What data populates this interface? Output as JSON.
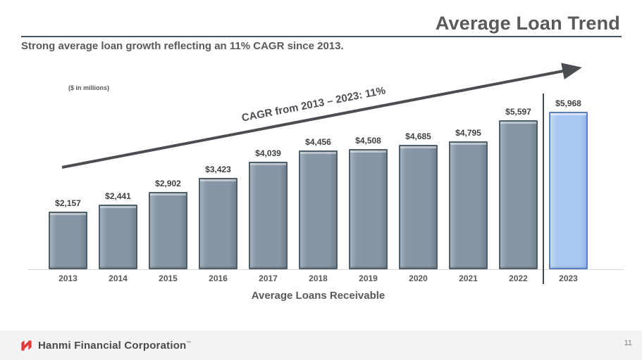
{
  "slide": {
    "title": "Average Loan Trend",
    "subtitle": "Strong average loan growth reflecting an 11% CAGR since 2013.",
    "footer_brand": "Hanmi Financial Corporation",
    "trademark": "™",
    "page_number": "11",
    "colors": {
      "title_gray": "#595959",
      "title_rule": "#44546a",
      "bar_fill": "#8696a4",
      "bar_border": "#4e5f6a",
      "highlight_fill": "#a9c7f2",
      "highlight_border": "#5c80c2",
      "arrow": "#4a4e52",
      "logo_red": "#e03a3a",
      "footer_bg": "#f3f3f3"
    }
  },
  "chart_data": {
    "type": "bar",
    "title": "Average Loans Receivable",
    "units_note": "($ in millions)",
    "annotation": "CAGR from 2013 – 2023: 11%",
    "categories": [
      "2013",
      "2014",
      "2015",
      "2016",
      "2017",
      "2018",
      "2019",
      "2020",
      "2021",
      "2022",
      "2023"
    ],
    "values": [
      2157,
      2441,
      2902,
      3423,
      4039,
      4456,
      4508,
      4685,
      4795,
      5597,
      5968
    ],
    "value_labels": [
      "$2,157",
      "$2,441",
      "$2,902",
      "$3,423",
      "$4,039",
      "$4,456",
      "$4,508",
      "$4,685",
      "$4,795",
      "$5,597",
      "$5,968"
    ],
    "highlight_index": 10,
    "xlabel": "Average Loans Receivable",
    "ylabel": "",
    "ylim": [
      0,
      5968
    ],
    "grid": false,
    "legend": "none"
  }
}
